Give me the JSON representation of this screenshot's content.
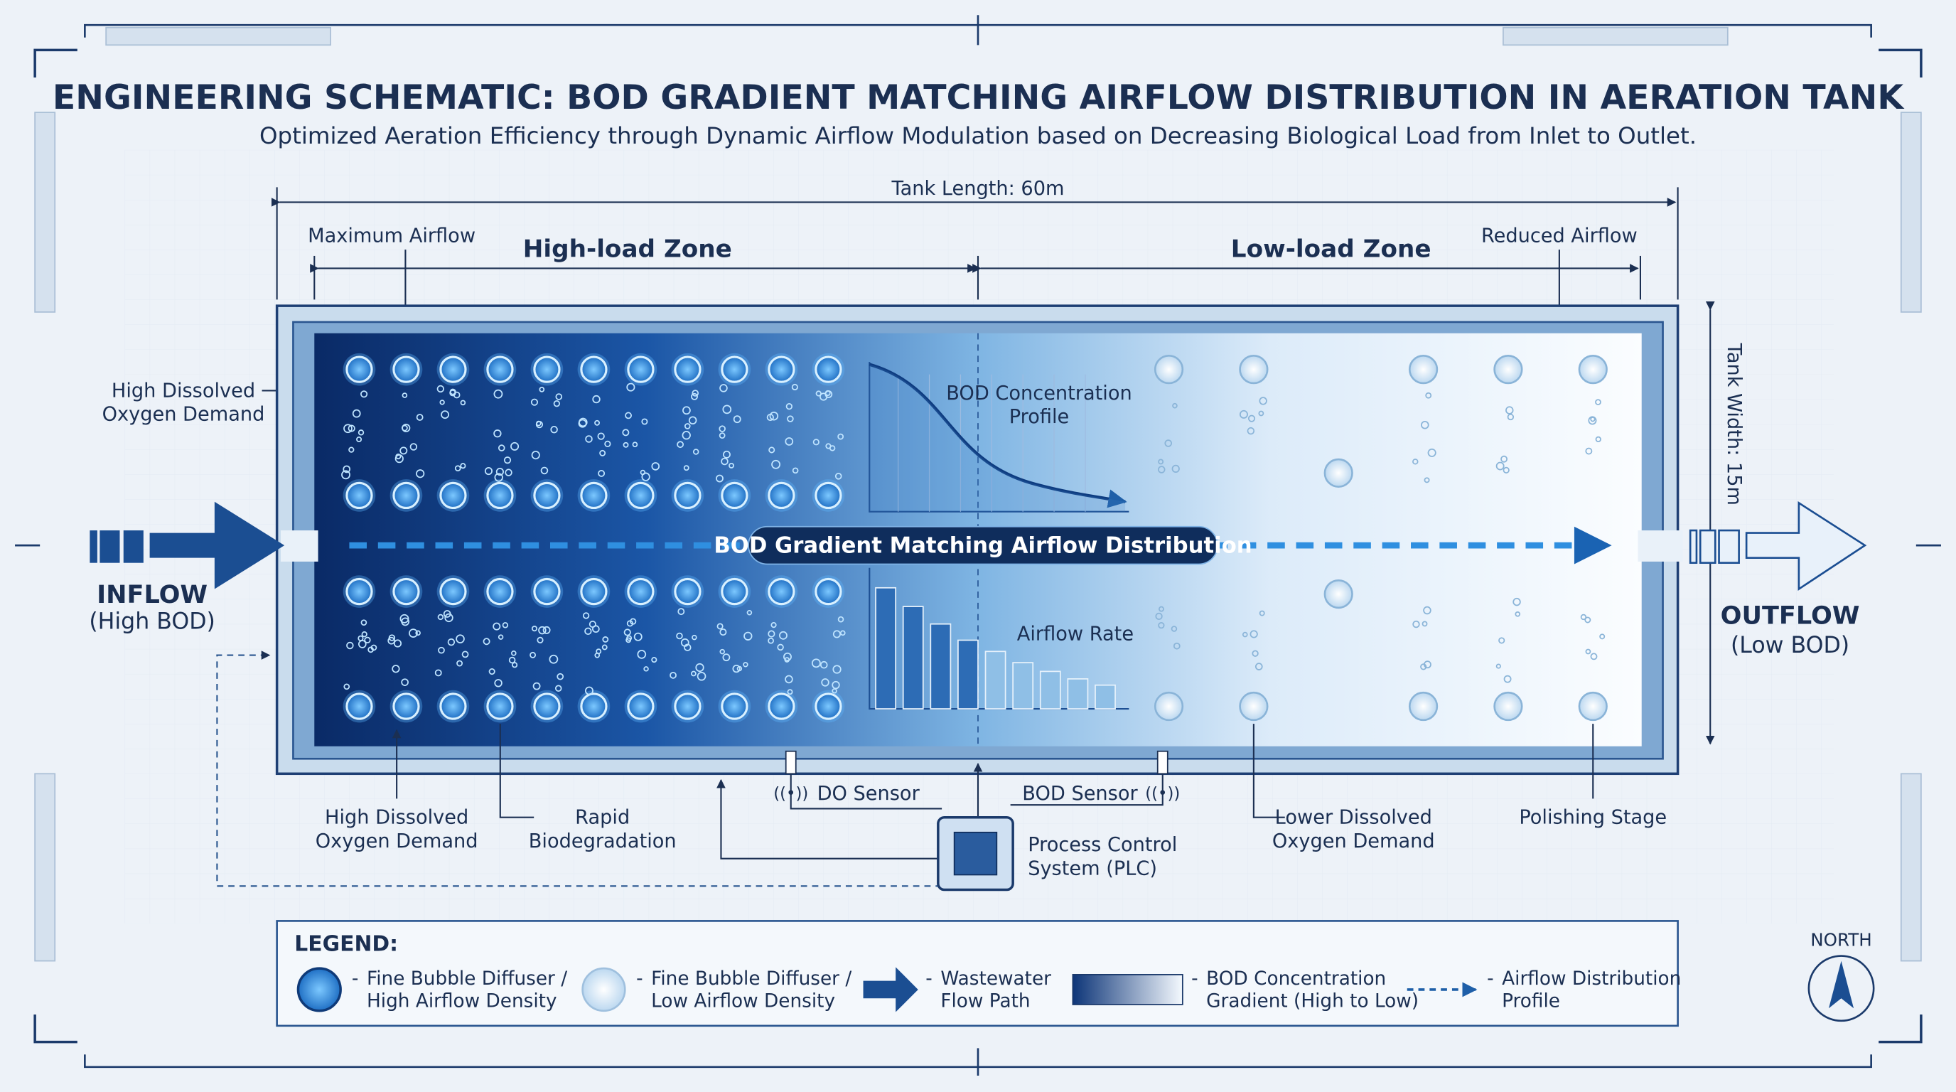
{
  "header": {
    "title": "ENGINEERING SCHEMATIC: BOD GRADIENT MATCHING AIRFLOW DISTRIBUTION IN AERATION TANK",
    "subtitle": "Optimized Aeration Efficiency through Dynamic Airflow Modulation based on Decreasing Biological Load from Inlet to Outlet."
  },
  "dimensions": {
    "length": "Tank Length: 60m",
    "width": "Tank Width: 15m"
  },
  "zones": {
    "high": "High-load Zone",
    "low": "Low-load Zone"
  },
  "callouts": {
    "max_airflow": "Maximum Airflow",
    "reduced_airflow": "Reduced Airflow",
    "inlet_demand": [
      "High Dissolved",
      "Oxygen Demand"
    ],
    "bod_profile": [
      "BOD Concentration",
      "Profile"
    ],
    "airflow_rate": "Airflow Rate",
    "banner": "BOD Gradient Matching Airflow Distribution"
  },
  "flow": {
    "inflow": "INFLOW",
    "inflow_note": "(High BOD)",
    "outflow": "OUTFLOW",
    "outflow_note": "(Low BOD)"
  },
  "bottom": {
    "high_demand": [
      "High Dissolved",
      "Oxygen Demand"
    ],
    "rapid": [
      "Rapid",
      "Biodegradation"
    ],
    "do_sensor": "DO Sensor",
    "bod_sensor": "BOD Sensor",
    "plc": [
      "Process Control",
      "System (PLC)"
    ],
    "lower_demand": [
      "Lower Dissolved",
      "Oxygen Demand"
    ],
    "polishing": "Polishing Stage"
  },
  "legend": {
    "title": "LEGEND:",
    "items": [
      [
        "Fine Bubble Diffuser /",
        "High Airflow Density"
      ],
      [
        "Fine Bubble Diffuser /",
        "Low Airflow Density"
      ],
      [
        "Wastewater",
        "Flow Path"
      ],
      [
        "BOD Concentration",
        "Gradient (High to Low)"
      ],
      [
        "Airflow Distribution",
        "Profile"
      ]
    ]
  },
  "compass": "NORTH"
}
